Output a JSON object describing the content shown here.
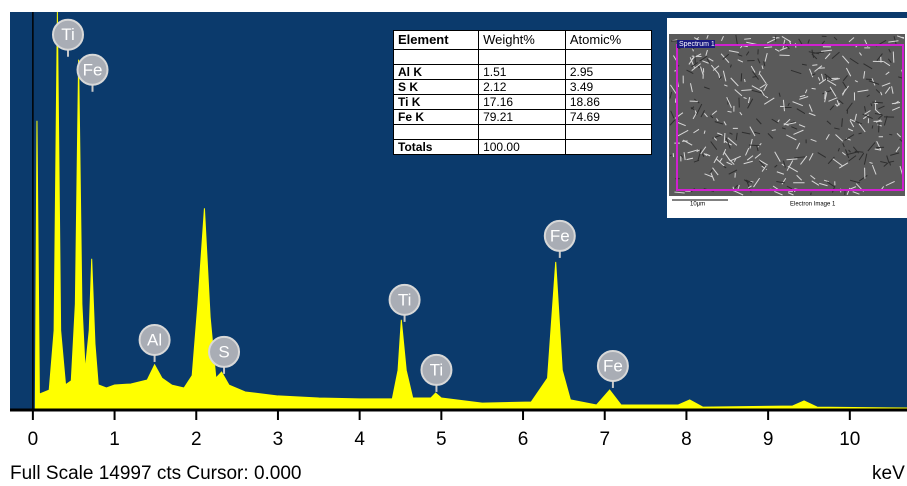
{
  "chart_data": {
    "type": "area",
    "x": [
      0,
      0.03,
      0.05,
      0.08,
      0.2,
      0.26,
      0.3,
      0.34,
      0.4,
      0.47,
      0.52,
      0.56,
      0.6,
      0.64,
      0.69,
      0.72,
      0.76,
      0.8,
      0.9,
      1.0,
      1.2,
      1.4,
      1.49,
      1.58,
      1.7,
      1.85,
      1.95,
      2.02,
      2.1,
      2.17,
      2.24,
      2.31,
      2.4,
      2.6,
      3.0,
      3.5,
      4.0,
      4.4,
      4.47,
      4.51,
      4.57,
      4.65,
      4.87,
      4.93,
      5.0,
      5.5,
      6.1,
      6.3,
      6.4,
      6.48,
      6.58,
      6.9,
      7.06,
      7.2,
      7.9,
      8.04,
      8.2,
      9.3,
      9.44,
      9.6,
      10.7
    ],
    "values": [
      0,
      0,
      10900,
      600,
      750,
      3000,
      14997,
      3000,
      950,
      1100,
      4000,
      13200,
      4000,
      1500,
      3000,
      5700,
      2500,
      950,
      830,
      940,
      980,
      1130,
      1700,
      1200,
      940,
      830,
      1300,
      4000,
      7600,
      3500,
      1200,
      1430,
      940,
      680,
      530,
      450,
      420,
      420,
      1500,
      3400,
      1500,
      450,
      450,
      640,
      450,
      260,
      300,
      1200,
      5580,
      1500,
      380,
      190,
      750,
      190,
      190,
      380,
      110,
      150,
      340,
      110,
      75
    ],
    "color": "#ffff00",
    "background": "#0b3a6c",
    "xlim": [
      -0.28,
      10.7
    ],
    "xticks": [
      0,
      1,
      2,
      3,
      4,
      5,
      6,
      7,
      8,
      9,
      10
    ],
    "ylim": [
      0,
      14997
    ],
    "x_label": "keV",
    "footer": "Full Scale 14997 cts Cursor: 0.000",
    "annotations": [
      {
        "text": "Ti",
        "x": 0.43,
        "y": 14140
      },
      {
        "text": "Fe",
        "x": 0.73,
        "y": 12820
      },
      {
        "text": "Al",
        "x": 1.49,
        "y": 2640
      },
      {
        "text": "S",
        "x": 2.34,
        "y": 2190
      },
      {
        "text": "Ti",
        "x": 4.55,
        "y": 4150
      },
      {
        "text": "Ti",
        "x": 4.94,
        "y": 1510
      },
      {
        "text": "Fe",
        "x": 6.45,
        "y": 6560
      },
      {
        "text": "Fe",
        "x": 7.1,
        "y": 1660
      }
    ]
  },
  "table": {
    "columns": [
      "Element",
      "Weight%",
      "Atomic%"
    ],
    "rows": [
      [
        "Al K",
        "1.51",
        "2.95"
      ],
      [
        "S K",
        "2.12",
        "3.49"
      ],
      [
        "Ti K",
        "17.16",
        "18.86"
      ],
      [
        "Fe K",
        "79.21",
        "74.69"
      ]
    ],
    "totals": [
      "Totals",
      "100.00"
    ]
  },
  "image": {
    "tag": "Spectrum 1",
    "scale": "10μm",
    "caption": "Electron Image 1"
  }
}
